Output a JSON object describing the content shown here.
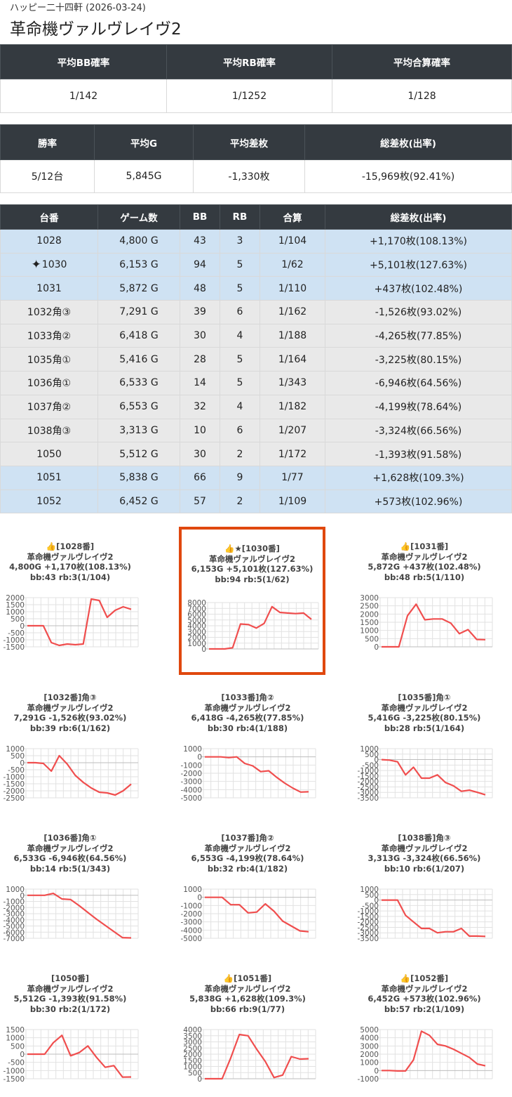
{
  "header": {
    "subtitle": "ハッピー二十四軒 (2026-03-24)",
    "title": "革命機ヴァルヴレイヴ2"
  },
  "summary1": {
    "headers": [
      "平均BB確率",
      "平均RB確率",
      "平均合算確率"
    ],
    "values": [
      "1/142",
      "1/1252",
      "1/128"
    ]
  },
  "summary2": {
    "headers": [
      "勝率",
      "平均G",
      "平均差枚",
      "総差枚(出率)"
    ],
    "values": [
      "5/12台",
      "5,845G",
      "-1,330枚",
      "-15,969枚(92.41%)"
    ]
  },
  "machines": {
    "headers": [
      "台番",
      "ゲーム数",
      "BB",
      "RB",
      "合算",
      "総差枚(出率)"
    ],
    "rows": [
      {
        "no": "1028",
        "games": "4,800 G",
        "bb": "43",
        "rb": "3",
        "total": "1/104",
        "diff": "+1,170枚(108.13%)",
        "status": "plus",
        "sparkle": false
      },
      {
        "no": "1030",
        "games": "6,153 G",
        "bb": "94",
        "rb": "5",
        "total": "1/62",
        "diff": "+5,101枚(127.63%)",
        "status": "plus",
        "sparkle": true
      },
      {
        "no": "1031",
        "games": "5,872 G",
        "bb": "48",
        "rb": "5",
        "total": "1/110",
        "diff": "+437枚(102.48%)",
        "status": "plus",
        "sparkle": false
      },
      {
        "no": "1032角③",
        "games": "7,291 G",
        "bb": "39",
        "rb": "6",
        "total": "1/162",
        "diff": "-1,526枚(93.02%)",
        "status": "minus",
        "sparkle": false
      },
      {
        "no": "1033角②",
        "games": "6,418 G",
        "bb": "30",
        "rb": "4",
        "total": "1/188",
        "diff": "-4,265枚(77.85%)",
        "status": "minus",
        "sparkle": false
      },
      {
        "no": "1035角①",
        "games": "5,416 G",
        "bb": "28",
        "rb": "5",
        "total": "1/164",
        "diff": "-3,225枚(80.15%)",
        "status": "minus",
        "sparkle": false
      },
      {
        "no": "1036角①",
        "games": "6,533 G",
        "bb": "14",
        "rb": "5",
        "total": "1/343",
        "diff": "-6,946枚(64.56%)",
        "status": "minus",
        "sparkle": false
      },
      {
        "no": "1037角②",
        "games": "6,553 G",
        "bb": "32",
        "rb": "4",
        "total": "1/182",
        "diff": "-4,199枚(78.64%)",
        "status": "minus",
        "sparkle": false
      },
      {
        "no": "1038角③",
        "games": "3,313 G",
        "bb": "10",
        "rb": "6",
        "total": "1/207",
        "diff": "-3,324枚(66.56%)",
        "status": "minus",
        "sparkle": false
      },
      {
        "no": "1050",
        "games": "5,512 G",
        "bb": "30",
        "rb": "2",
        "total": "1/172",
        "diff": "-1,393枚(91.58%)",
        "status": "minus",
        "sparkle": false
      },
      {
        "no": "1051",
        "games": "5,838 G",
        "bb": "66",
        "rb": "9",
        "total": "1/77",
        "diff": "+1,628枚(109.3%)",
        "status": "plus",
        "sparkle": false
      },
      {
        "no": "1052",
        "games": "6,452 G",
        "bb": "57",
        "rb": "2",
        "total": "1/109",
        "diff": "+573枚(102.96%)",
        "status": "plus",
        "sparkle": false
      }
    ]
  },
  "colors": {
    "line": "#f04e4e",
    "highlight": "#e0480e",
    "plus_row": "#cfe2f3",
    "minus_row": "#e9e9e9",
    "header_bg": "#343a40"
  },
  "chart_data": [
    {
      "type": "line",
      "machine": "1028",
      "lines": [
        "👍[1028番]",
        "革命機ヴァルヴレイヴ2",
        "4,800G +1,170枚(108.13%)",
        "bb:43 rb:3(1/104)"
      ],
      "highlight": false,
      "yticks": [
        2000,
        1500,
        1000,
        500,
        0,
        -500,
        -1000,
        -1500
      ],
      "ylim": [
        -1500,
        2000
      ],
      "values": [
        0,
        0,
        0,
        -1200,
        -1400,
        -1300,
        -1350,
        -1300,
        1900,
        1800,
        600,
        1100,
        1350,
        1170
      ]
    },
    {
      "type": "line",
      "machine": "1030",
      "lines": [
        "👍★[1030番]",
        "革命機ヴァルヴレイヴ2",
        "6,153G +5,101枚(127.63%)",
        "bb:94 rb:5(1/62)"
      ],
      "highlight": true,
      "yticks": [
        8000,
        7000,
        6000,
        5000,
        4000,
        3000,
        2000,
        1000,
        0
      ],
      "ylim": [
        0,
        8000
      ],
      "values": [
        0,
        0,
        0,
        200,
        4300,
        4200,
        3600,
        4400,
        7300,
        6300,
        6200,
        6100,
        6200,
        5100
      ]
    },
    {
      "type": "line",
      "machine": "1031",
      "lines": [
        "👍[1031番]",
        "革命機ヴァルヴレイヴ2",
        "5,872G +437枚(102.48%)",
        "bb:48 rb:5(1/110)"
      ],
      "highlight": false,
      "yticks": [
        3000,
        2500,
        2000,
        1500,
        1000,
        500,
        0
      ],
      "ylim": [
        0,
        3000
      ],
      "values": [
        0,
        0,
        0,
        1900,
        2600,
        1650,
        1700,
        1700,
        1450,
        800,
        1050,
        450,
        437
      ]
    },
    {
      "type": "line",
      "machine": "1032",
      "lines": [
        "[1032番]角③",
        "革命機ヴァルヴレイヴ2",
        "7,291G -1,526枚(93.02%)",
        "bb:39 rb:6(1/162)"
      ],
      "highlight": false,
      "yticks": [
        1000,
        500,
        0,
        -500,
        -1000,
        -1500,
        -2000,
        -2500
      ],
      "ylim": [
        -2500,
        1000
      ],
      "values": [
        0,
        0,
        -50,
        -600,
        500,
        -100,
        -900,
        -1400,
        -1800,
        -2100,
        -2150,
        -2300,
        -2000,
        -1526
      ]
    },
    {
      "type": "line",
      "machine": "1033",
      "lines": [
        "[1033番]角②",
        "革命機ヴァルヴレイヴ2",
        "6,418G -4,265枚(77.85%)",
        "bb:30 rb:4(1/188)"
      ],
      "highlight": false,
      "yticks": [
        1000,
        0,
        -1000,
        -2000,
        -3000,
        -4000,
        -5000
      ],
      "ylim": [
        -5000,
        1000
      ],
      "values": [
        0,
        0,
        0,
        -100,
        0,
        -800,
        -1100,
        -1800,
        -1700,
        -2500,
        -3200,
        -3800,
        -4300,
        -4265
      ]
    },
    {
      "type": "line",
      "machine": "1035",
      "lines": [
        "[1035番]角①",
        "革命機ヴァルヴレイヴ2",
        "5,416G -3,225枚(80.15%)",
        "bb:28 rb:5(1/164)"
      ],
      "highlight": false,
      "yticks": [
        1000,
        500,
        0,
        -500,
        -1000,
        -1500,
        -2000,
        -2500,
        -3000,
        -3500
      ],
      "ylim": [
        -3500,
        1000
      ],
      "values": [
        0,
        -50,
        -200,
        -1400,
        -700,
        -1700,
        -1700,
        -1400,
        -2100,
        -2400,
        -2900,
        -2800,
        -3000,
        -3225
      ]
    },
    {
      "type": "line",
      "machine": "1036",
      "lines": [
        "[1036番]角①",
        "革命機ヴァルヴレイヴ2",
        "6,533G -6,946枚(64.56%)",
        "bb:14 rb:5(1/343)"
      ],
      "highlight": false,
      "yticks": [
        1000,
        0,
        -1000,
        -2000,
        -3000,
        -4000,
        -5000,
        -6000,
        -7000
      ],
      "ylim": [
        -7000,
        1000
      ],
      "values": [
        0,
        0,
        0,
        300,
        -600,
        -700,
        -1700,
        -2800,
        -3900,
        -4900,
        -5900,
        -6900,
        -6946
      ]
    },
    {
      "type": "line",
      "machine": "1037",
      "lines": [
        "[1037番]角②",
        "革命機ヴァルヴレイヴ2",
        "6,553G -4,199枚(78.64%)",
        "bb:32 rb:4(1/182)"
      ],
      "highlight": false,
      "yticks": [
        1000,
        0,
        -1000,
        -2000,
        -3000,
        -4000,
        -5000
      ],
      "ylim": [
        -5000,
        1000
      ],
      "values": [
        0,
        0,
        0,
        -900,
        -900,
        -1900,
        -1800,
        -800,
        -1700,
        -2900,
        -3500,
        -4100,
        -4199
      ]
    },
    {
      "type": "line",
      "machine": "1038",
      "lines": [
        "[1038番]角③",
        "革命機ヴァルヴレイヴ2",
        "3,313G -3,324枚(66.56%)",
        "bb:10 rb:6(1/207)"
      ],
      "highlight": false,
      "yticks": [
        1000,
        500,
        0,
        -500,
        -1000,
        -1500,
        -2000,
        -2500,
        -3000,
        -3500
      ],
      "ylim": [
        -3500,
        1000
      ],
      "values": [
        0,
        0,
        0,
        -1400,
        -2000,
        -2600,
        -2600,
        -3000,
        -2900,
        -2900,
        -2600,
        -3300,
        -3300,
        -3324
      ]
    },
    {
      "type": "line",
      "machine": "1050",
      "lines": [
        "[1050番]",
        "革命機ヴァルヴレイヴ2",
        "5,512G -1,393枚(91.58%)",
        "bb:30 rb:2(1/172)"
      ],
      "highlight": false,
      "yticks": [
        1500,
        1000,
        500,
        0,
        -500,
        -1000,
        -1500
      ],
      "ylim": [
        -1500,
        1500
      ],
      "values": [
        0,
        0,
        0,
        700,
        1150,
        -100,
        100,
        500,
        -200,
        -800,
        -700,
        -1400,
        -1393
      ]
    },
    {
      "type": "line",
      "machine": "1051",
      "lines": [
        "👍[1051番]",
        "革命機ヴァルヴレイヴ2",
        "5,838G +1,628枚(109.3%)",
        "bb:66 rb:9(1/77)"
      ],
      "highlight": false,
      "yticks": [
        4000,
        3500,
        3000,
        2500,
        2000,
        1500,
        1000,
        500,
        0
      ],
      "ylim": [
        0,
        4000
      ],
      "values": [
        0,
        0,
        0,
        1700,
        3600,
        3500,
        2400,
        1400,
        100,
        300,
        1800,
        1600,
        1628
      ]
    },
    {
      "type": "line",
      "machine": "1052",
      "lines": [
        "👍[1052番]",
        "革命機ヴァルヴレイヴ2",
        "6,452G +573枚(102.96%)",
        "bb:57 rb:2(1/109)"
      ],
      "highlight": false,
      "yticks": [
        5000,
        4000,
        3000,
        2000,
        1000,
        0,
        -1000
      ],
      "ylim": [
        -1000,
        5000
      ],
      "values": [
        0,
        0,
        -50,
        -50,
        1300,
        4800,
        4300,
        3200,
        3000,
        2600,
        2100,
        1600,
        800,
        573
      ]
    }
  ]
}
